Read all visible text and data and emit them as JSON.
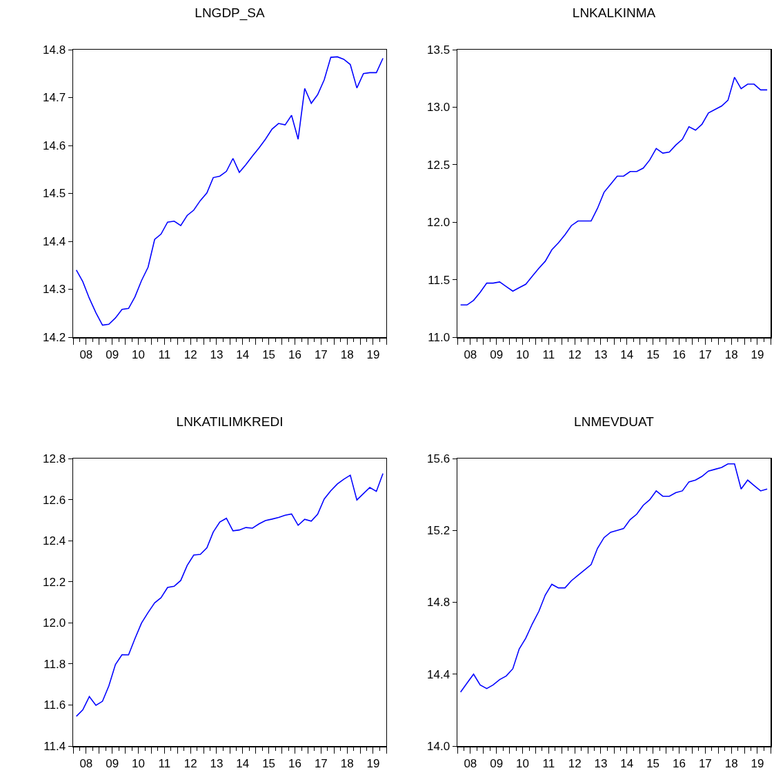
{
  "chart_data": [
    {
      "type": "line",
      "title": "LNGDP_SA",
      "xlim": [
        "2008-01-01",
        "2020-01-01"
      ],
      "ylim": [
        14.2,
        14.8
      ],
      "yticks": [
        14.2,
        14.3,
        14.4,
        14.5,
        14.6,
        14.7,
        14.8
      ],
      "xticks": [
        {
          "value": "2008-01-01",
          "label": null
        },
        {
          "value": "2008-07-01",
          "label": "08"
        },
        {
          "value": "2009-01-01",
          "label": null
        },
        {
          "value": "2009-07-01",
          "label": "09"
        },
        {
          "value": "2010-01-01",
          "label": null
        },
        {
          "value": "2010-07-01",
          "label": "10"
        },
        {
          "value": "2011-01-01",
          "label": null
        },
        {
          "value": "2011-07-01",
          "label": "11"
        },
        {
          "value": "2012-01-01",
          "label": null
        },
        {
          "value": "2012-07-01",
          "label": "12"
        },
        {
          "value": "2013-01-01",
          "label": null
        },
        {
          "value": "2013-07-01",
          "label": "13"
        },
        {
          "value": "2014-01-01",
          "label": null
        },
        {
          "value": "2014-07-01",
          "label": "14"
        },
        {
          "value": "2015-01-01",
          "label": null
        },
        {
          "value": "2015-07-01",
          "label": "15"
        },
        {
          "value": "2016-01-01",
          "label": null
        },
        {
          "value": "2016-07-01",
          "label": "16"
        },
        {
          "value": "2017-01-01",
          "label": null
        },
        {
          "value": "2017-07-01",
          "label": "17"
        },
        {
          "value": "2018-01-01",
          "label": null
        },
        {
          "value": "2018-07-01",
          "label": "18"
        },
        {
          "value": "2019-01-01",
          "label": null
        },
        {
          "value": "2019-07-01",
          "label": "19"
        },
        {
          "value": "2020-01-01",
          "label": null
        }
      ],
      "x": [
        "2008-02-15",
        "2008-05-15",
        "2008-08-15",
        "2008-11-15",
        "2009-02-15",
        "2009-05-15",
        "2009-08-15",
        "2009-11-15",
        "2010-02-15",
        "2010-05-15",
        "2010-08-15",
        "2010-11-15",
        "2011-02-15",
        "2011-05-15",
        "2011-08-15",
        "2011-11-15",
        "2012-02-15",
        "2012-05-15",
        "2012-08-15",
        "2012-11-15",
        "2013-02-15",
        "2013-05-15",
        "2013-08-15",
        "2013-11-15",
        "2014-02-15",
        "2014-05-15",
        "2014-08-15",
        "2014-11-15",
        "2015-02-15",
        "2015-05-15",
        "2015-08-15",
        "2015-11-15",
        "2016-02-15",
        "2016-05-15",
        "2016-08-15",
        "2016-11-15",
        "2017-02-15",
        "2017-05-15",
        "2017-08-15",
        "2017-11-15",
        "2018-02-15",
        "2018-05-15",
        "2018-08-15",
        "2018-11-15",
        "2019-02-15",
        "2019-05-15",
        "2019-08-15",
        "2019-11-15"
      ],
      "series": [
        {
          "color": "#0000ff",
          "values": [
            14.34,
            14.316,
            14.281,
            14.251,
            14.225,
            14.227,
            14.24,
            14.258,
            14.26,
            14.284,
            14.318,
            14.346,
            14.404,
            14.415,
            14.44,
            14.442,
            14.433,
            14.454,
            14.465,
            14.485,
            14.501,
            14.533,
            14.536,
            14.546,
            14.573,
            14.544,
            14.56,
            14.578,
            14.595,
            14.613,
            14.634,
            14.646,
            14.643,
            14.663,
            14.613,
            14.719,
            14.688,
            14.706,
            14.737,
            14.784,
            14.785,
            14.78,
            14.769,
            14.72,
            14.75,
            14.752,
            14.752,
            14.782
          ]
        }
      ]
    },
    {
      "type": "line",
      "title": "LNKALKINMA",
      "xlim": [
        "2008-01-01",
        "2020-01-01"
      ],
      "ylim": [
        11.0,
        13.5
      ],
      "yticks": [
        {
          "value": 11,
          "label": "11.0"
        },
        {
          "value": 11.5,
          "label": "11.5"
        },
        {
          "value": 12,
          "label": "12.0"
        },
        {
          "value": 12.5,
          "label": "12.5"
        },
        {
          "value": 13,
          "label": "13.0"
        },
        {
          "value": 13.5,
          "label": "13.5"
        }
      ],
      "xticks": [
        {
          "value": "2008-01-01",
          "label": null
        },
        {
          "value": "2008-07-01",
          "label": "08"
        },
        {
          "value": "2009-01-01",
          "label": null
        },
        {
          "value": "2009-07-01",
          "label": "09"
        },
        {
          "value": "2010-01-01",
          "label": null
        },
        {
          "value": "2010-07-01",
          "label": "10"
        },
        {
          "value": "2011-01-01",
          "label": null
        },
        {
          "value": "2011-07-01",
          "label": "11"
        },
        {
          "value": "2012-01-01",
          "label": null
        },
        {
          "value": "2012-07-01",
          "label": "12"
        },
        {
          "value": "2013-01-01",
          "label": null
        },
        {
          "value": "2013-07-01",
          "label": "13"
        },
        {
          "value": "2014-01-01",
          "label": null
        },
        {
          "value": "2014-07-01",
          "label": "14"
        },
        {
          "value": "2015-01-01",
          "label": null
        },
        {
          "value": "2015-07-01",
          "label": "15"
        },
        {
          "value": "2016-01-01",
          "label": null
        },
        {
          "value": "2016-07-01",
          "label": "16"
        },
        {
          "value": "2017-01-01",
          "label": null
        },
        {
          "value": "2017-07-01",
          "label": "17"
        },
        {
          "value": "2018-01-01",
          "label": null
        },
        {
          "value": "2018-07-01",
          "label": "18"
        },
        {
          "value": "2019-01-01",
          "label": null
        },
        {
          "value": "2019-07-01",
          "label": "19"
        },
        {
          "value": "2020-01-01",
          "label": null
        }
      ],
      "x": [
        "2008-02-15",
        "2008-05-15",
        "2008-08-15",
        "2008-11-15",
        "2009-02-15",
        "2009-05-15",
        "2009-08-15",
        "2009-11-15",
        "2010-02-15",
        "2010-05-15",
        "2010-08-15",
        "2010-11-15",
        "2011-02-15",
        "2011-05-15",
        "2011-08-15",
        "2011-11-15",
        "2012-02-15",
        "2012-05-15",
        "2012-08-15",
        "2012-11-15",
        "2013-02-15",
        "2013-05-15",
        "2013-08-15",
        "2013-11-15",
        "2014-02-15",
        "2014-05-15",
        "2014-08-15",
        "2014-11-15",
        "2015-02-15",
        "2015-05-15",
        "2015-08-15",
        "2015-11-15",
        "2016-02-15",
        "2016-05-15",
        "2016-08-15",
        "2016-11-15",
        "2017-02-15",
        "2017-05-15",
        "2017-08-15",
        "2017-11-15",
        "2018-02-15",
        "2018-05-15",
        "2018-08-15",
        "2018-11-15",
        "2019-02-15",
        "2019-05-15",
        "2019-08-15",
        "2019-11-15"
      ],
      "series": [
        {
          "color": "#0000ff",
          "values": [
            11.28,
            11.28,
            11.32,
            11.39,
            11.47,
            11.47,
            11.48,
            11.44,
            11.4,
            11.43,
            11.46,
            11.53,
            11.6,
            11.66,
            11.76,
            11.82,
            11.89,
            11.97,
            12.01,
            12.01,
            12.01,
            12.12,
            12.26,
            12.33,
            12.4,
            12.4,
            12.44,
            12.44,
            12.47,
            12.54,
            12.64,
            12.6,
            12.61,
            12.67,
            12.72,
            12.83,
            12.8,
            12.85,
            12.95,
            12.98,
            13.01,
            13.06,
            13.26,
            13.16,
            13.2,
            13.2,
            13.15,
            13.15
          ]
        }
      ]
    },
    {
      "type": "line",
      "title": "LNKATILIMKREDI",
      "xlim": [
        "2008-01-01",
        "2020-01-01"
      ],
      "ylim": [
        11.4,
        12.8
      ],
      "yticks": [
        11.4,
        11.6,
        11.8,
        {
          "value": 12,
          "label": "12.0"
        },
        12.2,
        12.4,
        12.6,
        12.8
      ],
      "xticks": [
        {
          "value": "2008-01-01",
          "label": null
        },
        {
          "value": "2008-07-01",
          "label": "08"
        },
        {
          "value": "2009-01-01",
          "label": null
        },
        {
          "value": "2009-07-01",
          "label": "09"
        },
        {
          "value": "2010-01-01",
          "label": null
        },
        {
          "value": "2010-07-01",
          "label": "10"
        },
        {
          "value": "2011-01-01",
          "label": null
        },
        {
          "value": "2011-07-01",
          "label": "11"
        },
        {
          "value": "2012-01-01",
          "label": null
        },
        {
          "value": "2012-07-01",
          "label": "12"
        },
        {
          "value": "2013-01-01",
          "label": null
        },
        {
          "value": "2013-07-01",
          "label": "13"
        },
        {
          "value": "2014-01-01",
          "label": null
        },
        {
          "value": "2014-07-01",
          "label": "14"
        },
        {
          "value": "2015-01-01",
          "label": null
        },
        {
          "value": "2015-07-01",
          "label": "15"
        },
        {
          "value": "2016-01-01",
          "label": null
        },
        {
          "value": "2016-07-01",
          "label": "16"
        },
        {
          "value": "2017-01-01",
          "label": null
        },
        {
          "value": "2017-07-01",
          "label": "17"
        },
        {
          "value": "2018-01-01",
          "label": null
        },
        {
          "value": "2018-07-01",
          "label": "18"
        },
        {
          "value": "2019-01-01",
          "label": null
        },
        {
          "value": "2019-07-01",
          "label": "19"
        },
        {
          "value": "2020-01-01",
          "label": null
        }
      ],
      "x": [
        "2008-02-15",
        "2008-05-15",
        "2008-08-15",
        "2008-11-15",
        "2009-02-15",
        "2009-05-15",
        "2009-08-15",
        "2009-11-15",
        "2010-02-15",
        "2010-05-15",
        "2010-08-15",
        "2010-11-15",
        "2011-02-15",
        "2011-05-15",
        "2011-08-15",
        "2011-11-15",
        "2012-02-15",
        "2012-05-15",
        "2012-08-15",
        "2012-11-15",
        "2013-02-15",
        "2013-05-15",
        "2013-08-15",
        "2013-11-15",
        "2014-02-15",
        "2014-05-15",
        "2014-08-15",
        "2014-11-15",
        "2015-02-15",
        "2015-05-15",
        "2015-08-15",
        "2015-11-15",
        "2016-02-15",
        "2016-05-15",
        "2016-08-15",
        "2016-11-15",
        "2017-02-15",
        "2017-05-15",
        "2017-08-15",
        "2017-11-15",
        "2018-02-15",
        "2018-05-15",
        "2018-08-15",
        "2018-11-15",
        "2019-02-15",
        "2019-05-15",
        "2019-08-15",
        "2019-11-15"
      ],
      "series": [
        {
          "color": "#0000ff",
          "values": [
            11.545,
            11.576,
            11.641,
            11.598,
            11.618,
            11.693,
            11.797,
            11.845,
            11.844,
            11.923,
            11.999,
            12.05,
            12.097,
            12.122,
            12.172,
            12.178,
            12.206,
            12.279,
            12.33,
            12.333,
            12.365,
            12.442,
            12.491,
            12.509,
            12.448,
            12.452,
            12.464,
            12.461,
            12.482,
            12.498,
            12.505,
            12.513,
            12.524,
            12.53,
            12.475,
            12.504,
            12.495,
            12.529,
            12.603,
            12.643,
            12.676,
            12.699,
            12.719,
            12.598,
            12.629,
            12.659,
            12.64,
            12.727
          ]
        }
      ]
    },
    {
      "type": "line",
      "title": "LNMEVDUAT",
      "xlim": [
        "2008-01-01",
        "2020-01-01"
      ],
      "ylim": [
        14.0,
        15.6
      ],
      "yticks": [
        {
          "value": 14,
          "label": "14.0"
        },
        14.4,
        14.8,
        15.2,
        15.6
      ],
      "xticks": [
        {
          "value": "2008-01-01",
          "label": null
        },
        {
          "value": "2008-07-01",
          "label": "08"
        },
        {
          "value": "2009-01-01",
          "label": null
        },
        {
          "value": "2009-07-01",
          "label": "09"
        },
        {
          "value": "2010-01-01",
          "label": null
        },
        {
          "value": "2010-07-01",
          "label": "10"
        },
        {
          "value": "2011-01-01",
          "label": null
        },
        {
          "value": "2011-07-01",
          "label": "11"
        },
        {
          "value": "2012-01-01",
          "label": null
        },
        {
          "value": "2012-07-01",
          "label": "12"
        },
        {
          "value": "2013-01-01",
          "label": null
        },
        {
          "value": "2013-07-01",
          "label": "13"
        },
        {
          "value": "2014-01-01",
          "label": null
        },
        {
          "value": "2014-07-01",
          "label": "14"
        },
        {
          "value": "2015-01-01",
          "label": null
        },
        {
          "value": "2015-07-01",
          "label": "15"
        },
        {
          "value": "2016-01-01",
          "label": null
        },
        {
          "value": "2016-07-01",
          "label": "16"
        },
        {
          "value": "2017-01-01",
          "label": null
        },
        {
          "value": "2017-07-01",
          "label": "17"
        },
        {
          "value": "2018-01-01",
          "label": null
        },
        {
          "value": "2018-07-01",
          "label": "18"
        },
        {
          "value": "2019-01-01",
          "label": null
        },
        {
          "value": "2019-07-01",
          "label": "19"
        },
        {
          "value": "2020-01-01",
          "label": null
        }
      ],
      "x": [
        "2008-02-15",
        "2008-05-15",
        "2008-08-15",
        "2008-11-15",
        "2009-02-15",
        "2009-05-15",
        "2009-08-15",
        "2009-11-15",
        "2010-02-15",
        "2010-05-15",
        "2010-08-15",
        "2010-11-15",
        "2011-02-15",
        "2011-05-15",
        "2011-08-15",
        "2011-11-15",
        "2012-02-15",
        "2012-05-15",
        "2012-08-15",
        "2012-11-15",
        "2013-02-15",
        "2013-05-15",
        "2013-08-15",
        "2013-11-15",
        "2014-02-15",
        "2014-05-15",
        "2014-08-15",
        "2014-11-15",
        "2015-02-15",
        "2015-05-15",
        "2015-08-15",
        "2015-11-15",
        "2016-02-15",
        "2016-05-15",
        "2016-08-15",
        "2016-11-15",
        "2017-02-15",
        "2017-05-15",
        "2017-08-15",
        "2017-11-15",
        "2018-02-15",
        "2018-05-15",
        "2018-08-15",
        "2018-11-15",
        "2019-02-15",
        "2019-05-15",
        "2019-08-15",
        "2019-11-15"
      ],
      "series": [
        {
          "color": "#0000ff",
          "values": [
            14.3,
            14.35,
            14.4,
            14.34,
            14.32,
            14.34,
            14.37,
            14.39,
            14.43,
            14.54,
            14.6,
            14.68,
            14.75,
            14.84,
            14.9,
            14.88,
            14.88,
            14.92,
            14.95,
            14.98,
            15.01,
            15.1,
            15.16,
            15.19,
            15.2,
            15.21,
            15.26,
            15.29,
            15.34,
            15.37,
            15.42,
            15.39,
            15.39,
            15.41,
            15.42,
            15.47,
            15.48,
            15.5,
            15.53,
            15.54,
            15.55,
            15.57,
            15.57,
            15.43,
            15.48,
            15.45,
            15.42,
            15.43
          ]
        }
      ]
    }
  ]
}
